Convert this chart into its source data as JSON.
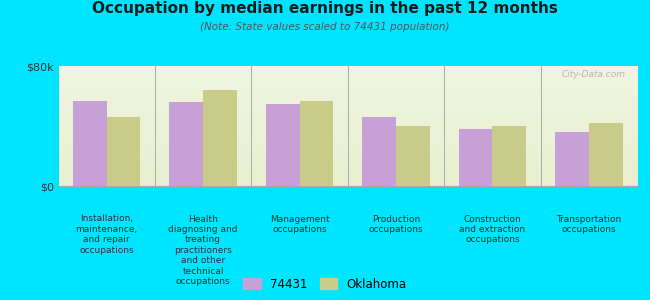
{
  "title": "Occupation by median earnings in the past 12 months",
  "subtitle": "(Note: State values scaled to 74431 population)",
  "background_color": "#00e5ff",
  "bar_color_74431": "#c8a0d8",
  "bar_color_oklahoma": "#c8cc88",
  "ylim": [
    0,
    80000
  ],
  "yticks": [
    0,
    80000
  ],
  "ytick_labels": [
    "$0",
    "$80k"
  ],
  "categories": [
    "Installation,\nmaintenance,\nand repair\noccupations",
    "Health\ndiagnosing and\ntreating\npractitioners\nand other\ntechnical\noccupations",
    "Management\noccupations",
    "Production\noccupations",
    "Construction\nand extraction\noccupations",
    "Transportation\noccupations"
  ],
  "values_74431": [
    57000,
    56000,
    55000,
    46000,
    38000,
    36000
  ],
  "values_oklahoma": [
    46000,
    64000,
    57000,
    40000,
    40000,
    42000
  ],
  "legend_74431": "74431",
  "legend_oklahoma": "Oklahoma",
  "watermark": "City-Data.com"
}
